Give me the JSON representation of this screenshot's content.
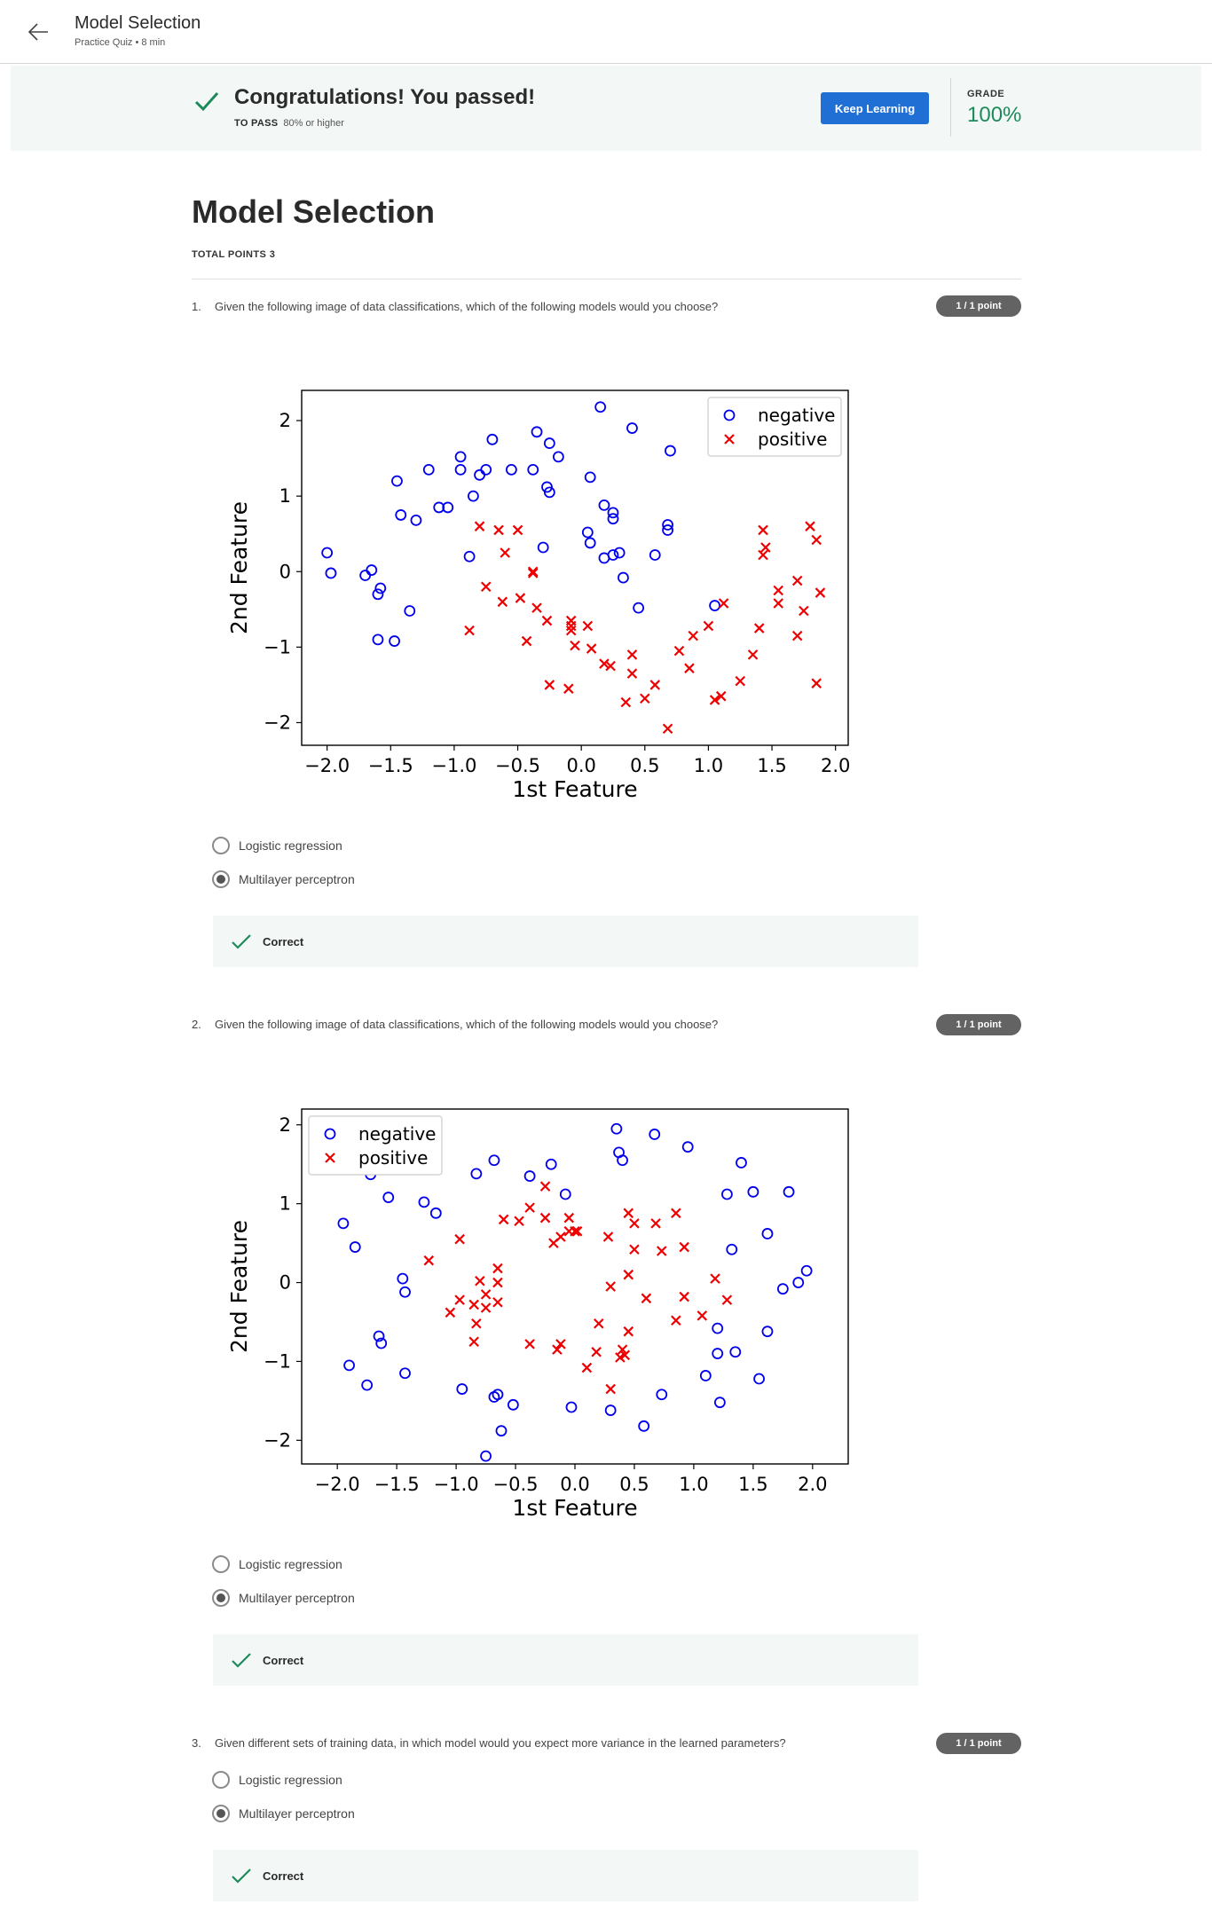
{
  "header": {
    "title": "Model Selection",
    "subtitle": "Practice Quiz • 8 min"
  },
  "banner": {
    "title": "Congratulations! You passed!",
    "to_pass_label": "TO PASS",
    "to_pass_value": "80% or higher",
    "keep_learning": "Keep Learning",
    "grade_label": "GRADE",
    "grade_value": "100%",
    "accent": "#1f6fd4",
    "success": "#1d8a5a"
  },
  "quiz": {
    "title": "Model Selection",
    "total_points": "TOTAL POINTS 3",
    "questions": [
      {
        "number": "1.",
        "text": "Given the following image of data classifications, which of the following models would you choose?",
        "points": "1 / 1 point",
        "options": [
          {
            "label": "Logistic regression",
            "selected": false
          },
          {
            "label": "Multilayer perceptron",
            "selected": true
          }
        ],
        "feedback": "Correct"
      },
      {
        "number": "2.",
        "text": "Given the following image of data classifications, which of the following models would you choose?",
        "points": "1 / 1 point",
        "options": [
          {
            "label": "Logistic regression",
            "selected": false
          },
          {
            "label": "Multilayer perceptron",
            "selected": true
          }
        ],
        "feedback": "Correct"
      },
      {
        "number": "3.",
        "text": "Given different sets of training data, in which model would you expect more variance in the learned parameters?",
        "points": "1 / 1 point",
        "options": [
          {
            "label": "Logistic regression",
            "selected": false
          },
          {
            "label": "Multilayer perceptron",
            "selected": true
          }
        ],
        "feedback": "Correct"
      }
    ]
  },
  "chart_data": [
    {
      "type": "scatter",
      "xlabel": "1st Feature",
      "ylabel": "2nd Feature",
      "xlim": [
        -2.2,
        2.1
      ],
      "ylim": [
        -2.3,
        2.4
      ],
      "xticks": [
        -2.0,
        -1.5,
        -1.0,
        -0.5,
        0.0,
        0.5,
        1.0,
        1.5,
        2.0
      ],
      "xtick_labels": [
        "−2.0",
        "−1.5",
        "−1.0",
        "−0.5",
        "0.0",
        "0.5",
        "1.0",
        "1.5",
        "2.0"
      ],
      "yticks": [
        -2,
        -1,
        0,
        1,
        2
      ],
      "ytick_labels": [
        "−2",
        "−1",
        "0",
        "1",
        "2"
      ],
      "legend_position": "top-right",
      "series": [
        {
          "name": "negative",
          "marker": "circle",
          "color": "#0000ee",
          "points": [
            [
              0.15,
              2.18
            ],
            [
              0.4,
              1.9
            ],
            [
              0.7,
              1.6
            ],
            [
              -0.35,
              1.85
            ],
            [
              -0.25,
              1.7
            ],
            [
              -0.18,
              1.52
            ],
            [
              -0.7,
              1.75
            ],
            [
              -0.95,
              1.52
            ],
            [
              -1.2,
              1.35
            ],
            [
              -0.95,
              1.35
            ],
            [
              -0.75,
              1.35
            ],
            [
              -0.8,
              1.28
            ],
            [
              -0.55,
              1.35
            ],
            [
              -0.38,
              1.35
            ],
            [
              -1.45,
              1.2
            ],
            [
              0.07,
              1.25
            ],
            [
              -0.27,
              1.12
            ],
            [
              -0.25,
              1.05
            ],
            [
              -0.85,
              1.0
            ],
            [
              -1.12,
              0.85
            ],
            [
              -1.05,
              0.85
            ],
            [
              -1.42,
              0.75
            ],
            [
              -1.3,
              0.68
            ],
            [
              0.18,
              0.88
            ],
            [
              0.25,
              0.78
            ],
            [
              0.25,
              0.7
            ],
            [
              0.68,
              0.62
            ],
            [
              0.68,
              0.55
            ],
            [
              0.05,
              0.52
            ],
            [
              0.07,
              0.38
            ],
            [
              -0.3,
              0.32
            ],
            [
              -2.0,
              0.25
            ],
            [
              -0.88,
              0.2
            ],
            [
              0.18,
              0.18
            ],
            [
              0.25,
              0.22
            ],
            [
              0.3,
              0.25
            ],
            [
              0.58,
              0.22
            ],
            [
              -1.65,
              0.02
            ],
            [
              -1.7,
              -0.05
            ],
            [
              -1.97,
              -0.02
            ],
            [
              0.33,
              -0.08
            ],
            [
              -1.58,
              -0.22
            ],
            [
              -1.6,
              -0.3
            ],
            [
              -1.35,
              -0.52
            ],
            [
              0.45,
              -0.48
            ],
            [
              1.05,
              -0.45
            ],
            [
              -1.6,
              -0.9
            ],
            [
              -1.47,
              -0.92
            ]
          ]
        },
        {
          "name": "positive",
          "marker": "x",
          "color": "#ee0000",
          "points": [
            [
              -0.8,
              0.6
            ],
            [
              -0.65,
              0.55
            ],
            [
              -0.5,
              0.55
            ],
            [
              -0.6,
              0.25
            ],
            [
              -0.38,
              0.0
            ],
            [
              -0.38,
              -0.02
            ],
            [
              -0.75,
              -0.2
            ],
            [
              -0.62,
              -0.4
            ],
            [
              -0.48,
              -0.35
            ],
            [
              -0.35,
              -0.48
            ],
            [
              -0.27,
              -0.65
            ],
            [
              -0.88,
              -0.78
            ],
            [
              -0.43,
              -0.92
            ],
            [
              -0.08,
              -0.65
            ],
            [
              -0.08,
              -0.72
            ],
            [
              -0.08,
              -0.78
            ],
            [
              0.05,
              -0.72
            ],
            [
              -0.05,
              -0.98
            ],
            [
              0.08,
              -1.02
            ],
            [
              0.18,
              -1.22
            ],
            [
              0.23,
              -1.25
            ],
            [
              0.4,
              -1.1
            ],
            [
              0.4,
              -1.35
            ],
            [
              -0.25,
              -1.5
            ],
            [
              -0.1,
              -1.55
            ],
            [
              0.35,
              -1.73
            ],
            [
              0.5,
              -1.68
            ],
            [
              0.58,
              -1.5
            ],
            [
              0.68,
              -2.08
            ],
            [
              0.77,
              -1.05
            ],
            [
              0.88,
              -0.85
            ],
            [
              1.0,
              -0.72
            ],
            [
              1.12,
              -0.42
            ],
            [
              0.85,
              -1.28
            ],
            [
              1.25,
              -1.45
            ],
            [
              1.35,
              -1.1
            ],
            [
              1.05,
              -1.7
            ],
            [
              1.1,
              -1.65
            ],
            [
              1.4,
              -0.75
            ],
            [
              1.43,
              0.55
            ],
            [
              1.45,
              0.32
            ],
            [
              1.43,
              0.22
            ],
            [
              1.55,
              -0.25
            ],
            [
              1.55,
              -0.42
            ],
            [
              1.7,
              -0.12
            ],
            [
              1.75,
              -0.52
            ],
            [
              1.8,
              0.6
            ],
            [
              1.85,
              0.42
            ],
            [
              1.88,
              -0.28
            ],
            [
              1.7,
              -0.85
            ],
            [
              1.85,
              -1.48
            ]
          ]
        }
      ]
    },
    {
      "type": "scatter",
      "xlabel": "1st Feature",
      "ylabel": "2nd Feature",
      "xlim": [
        -2.3,
        2.3
      ],
      "ylim": [
        -2.3,
        2.2
      ],
      "xticks": [
        -2.0,
        -1.5,
        -1.0,
        -0.5,
        0.0,
        0.5,
        1.0,
        1.5,
        2.0
      ],
      "xtick_labels": [
        "−2.0",
        "−1.5",
        "−1.0",
        "−0.5",
        "0.0",
        "0.5",
        "1.0",
        "1.5",
        "2.0"
      ],
      "yticks": [
        -2,
        -1,
        0,
        1,
        2
      ],
      "ytick_labels": [
        "−2",
        "−1",
        "0",
        "1",
        "2"
      ],
      "legend_position": "top-left",
      "series": [
        {
          "name": "negative",
          "marker": "circle",
          "color": "#0000ee",
          "points": [
            [
              0.35,
              1.95
            ],
            [
              0.67,
              1.88
            ],
            [
              0.95,
              1.72
            ],
            [
              0.37,
              1.65
            ],
            [
              0.4,
              1.55
            ],
            [
              -0.68,
              1.55
            ],
            [
              -0.2,
              1.5
            ],
            [
              1.4,
              1.52
            ],
            [
              -0.83,
              1.38
            ],
            [
              -0.38,
              1.35
            ],
            [
              -1.72,
              1.37
            ],
            [
              -0.08,
              1.12
            ],
            [
              1.28,
              1.12
            ],
            [
              1.5,
              1.15
            ],
            [
              1.8,
              1.15
            ],
            [
              -1.57,
              1.08
            ],
            [
              -1.27,
              1.02
            ],
            [
              -1.17,
              0.88
            ],
            [
              -1.95,
              0.75
            ],
            [
              1.62,
              0.62
            ],
            [
              -1.85,
              0.45
            ],
            [
              1.32,
              0.42
            ],
            [
              -1.45,
              0.05
            ],
            [
              -1.43,
              -0.12
            ],
            [
              1.75,
              -0.08
            ],
            [
              1.88,
              0.0
            ],
            [
              1.95,
              0.15
            ],
            [
              1.2,
              -0.58
            ],
            [
              1.62,
              -0.62
            ],
            [
              -1.65,
              -0.68
            ],
            [
              -1.63,
              -0.77
            ],
            [
              1.2,
              -0.9
            ],
            [
              1.35,
              -0.88
            ],
            [
              -1.9,
              -1.05
            ],
            [
              -1.43,
              -1.15
            ],
            [
              1.1,
              -1.18
            ],
            [
              1.55,
              -1.22
            ],
            [
              -1.75,
              -1.3
            ],
            [
              -0.95,
              -1.35
            ],
            [
              0.73,
              -1.42
            ],
            [
              -0.68,
              -1.45
            ],
            [
              -0.65,
              -1.42
            ],
            [
              -0.52,
              -1.55
            ],
            [
              1.22,
              -1.52
            ],
            [
              -0.03,
              -1.58
            ],
            [
              0.3,
              -1.62
            ],
            [
              0.58,
              -1.82
            ],
            [
              -0.62,
              -1.88
            ],
            [
              -0.75,
              -2.2
            ]
          ]
        },
        {
          "name": "positive",
          "marker": "x",
          "color": "#ee0000",
          "points": [
            [
              -0.25,
              1.22
            ],
            [
              -0.38,
              0.95
            ],
            [
              -0.25,
              0.82
            ],
            [
              -0.6,
              0.8
            ],
            [
              -0.47,
              0.78
            ],
            [
              -0.05,
              0.82
            ],
            [
              -0.05,
              0.65
            ],
            [
              0.0,
              0.65
            ],
            [
              0.02,
              0.65
            ],
            [
              -0.12,
              0.58
            ],
            [
              -0.18,
              0.5
            ],
            [
              0.28,
              0.58
            ],
            [
              0.45,
              0.88
            ],
            [
              0.5,
              0.75
            ],
            [
              0.68,
              0.75
            ],
            [
              0.85,
              0.88
            ],
            [
              0.5,
              0.42
            ],
            [
              0.73,
              0.4
            ],
            [
              0.92,
              0.45
            ],
            [
              -0.97,
              0.55
            ],
            [
              -1.23,
              0.28
            ],
            [
              -0.65,
              0.18
            ],
            [
              -0.8,
              0.02
            ],
            [
              -0.65,
              0.0
            ],
            [
              -0.75,
              -0.15
            ],
            [
              -0.97,
              -0.22
            ],
            [
              -0.85,
              -0.28
            ],
            [
              -0.75,
              -0.32
            ],
            [
              -0.65,
              -0.25
            ],
            [
              -1.05,
              -0.38
            ],
            [
              -0.83,
              -0.52
            ],
            [
              -0.85,
              -0.75
            ],
            [
              0.3,
              -0.05
            ],
            [
              0.45,
              0.1
            ],
            [
              0.6,
              -0.2
            ],
            [
              0.92,
              -0.18
            ],
            [
              1.18,
              0.05
            ],
            [
              1.28,
              -0.22
            ],
            [
              0.85,
              -0.48
            ],
            [
              1.07,
              -0.42
            ],
            [
              0.2,
              -0.52
            ],
            [
              0.45,
              -0.62
            ],
            [
              -0.38,
              -0.78
            ],
            [
              -0.12,
              -0.78
            ],
            [
              -0.15,
              -0.85
            ],
            [
              0.18,
              -0.88
            ],
            [
              0.4,
              -0.85
            ],
            [
              0.38,
              -0.95
            ],
            [
              0.42,
              -0.92
            ],
            [
              0.1,
              -1.08
            ],
            [
              0.3,
              -1.35
            ]
          ]
        }
      ]
    }
  ]
}
